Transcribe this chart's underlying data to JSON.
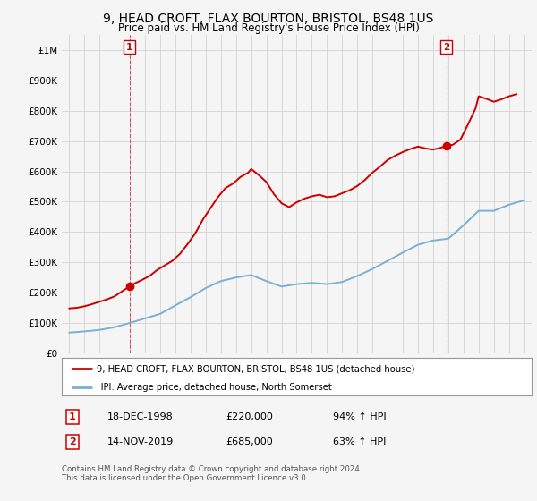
{
  "title": "9, HEAD CROFT, FLAX BOURTON, BRISTOL, BS48 1US",
  "subtitle": "Price paid vs. HM Land Registry's House Price Index (HPI)",
  "legend_line1": "9, HEAD CROFT, FLAX BOURTON, BRISTOL, BS48 1US (detached house)",
  "legend_line2": "HPI: Average price, detached house, North Somerset",
  "footnote": "Contains HM Land Registry data © Crown copyright and database right 2024.\nThis data is licensed under the Open Government Licence v3.0.",
  "sale1_date": "18-DEC-1998",
  "sale1_price": "£220,000",
  "sale1_hpi": "94% ↑ HPI",
  "sale2_date": "14-NOV-2019",
  "sale2_price": "£685,000",
  "sale2_hpi": "63% ↑ HPI",
  "sale1_year": 1998.96,
  "sale1_value": 220000,
  "sale2_year": 2019.87,
  "sale2_value": 685000,
  "red_color": "#cc0000",
  "blue_color": "#7bafd4",
  "background_color": "#f5f5f5",
  "grid_color": "#cccccc",
  "yticks": [
    0,
    100000,
    200000,
    300000,
    400000,
    500000,
    600000,
    700000,
    800000,
    900000,
    1000000
  ],
  "ylabels": [
    "£0",
    "£100K",
    "£200K",
    "£300K",
    "£400K",
    "£500K",
    "£600K",
    "£700K",
    "£800K",
    "£900K",
    "£1M"
  ],
  "ylim": [
    0,
    1050000
  ],
  "xlim_start": 1994.5,
  "xlim_end": 2025.5,
  "hpi_years": [
    1995,
    1996,
    1997,
    1998,
    1999,
    2000,
    2001,
    2002,
    2003,
    2004,
    2005,
    2006,
    2007,
    2008,
    2009,
    2010,
    2011,
    2012,
    2013,
    2014,
    2015,
    2016,
    2017,
    2018,
    2019,
    2020,
    2021,
    2022,
    2023,
    2024,
    2025
  ],
  "hpi_values": [
    68000,
    72000,
    77000,
    86000,
    100000,
    115000,
    130000,
    158000,
    185000,
    215000,
    238000,
    250000,
    258000,
    238000,
    220000,
    228000,
    232000,
    228000,
    235000,
    255000,
    278000,
    305000,
    332000,
    358000,
    372000,
    378000,
    422000,
    470000,
    470000,
    490000,
    505000
  ],
  "red_years": [
    1995.0,
    1995.5,
    1996.0,
    1996.5,
    1997.0,
    1997.5,
    1998.0,
    1998.5,
    1998.96,
    1999.3,
    1999.8,
    2000.3,
    2000.8,
    2001.3,
    2001.8,
    2002.3,
    2002.8,
    2003.3,
    2003.8,
    2004.3,
    2004.8,
    2005.3,
    2005.8,
    2006.3,
    2006.8,
    2007.0,
    2007.5,
    2008.0,
    2008.5,
    2009.0,
    2009.5,
    2010.0,
    2010.5,
    2011.0,
    2011.5,
    2012.0,
    2012.5,
    2013.0,
    2013.5,
    2014.0,
    2014.5,
    2015.0,
    2015.5,
    2016.0,
    2016.5,
    2017.0,
    2017.5,
    2018.0,
    2018.5,
    2019.0,
    2019.5,
    2019.87,
    2020.3,
    2020.8,
    2021.3,
    2021.8,
    2022.0,
    2022.5,
    2023.0,
    2023.5,
    2024.0,
    2024.5
  ],
  "red_values": [
    148000,
    150000,
    155000,
    162000,
    170000,
    178000,
    188000,
    205000,
    220000,
    230000,
    242000,
    255000,
    275000,
    290000,
    305000,
    328000,
    360000,
    395000,
    440000,
    478000,
    515000,
    545000,
    560000,
    582000,
    596000,
    608000,
    588000,
    565000,
    525000,
    495000,
    482000,
    498000,
    510000,
    518000,
    523000,
    515000,
    518000,
    528000,
    538000,
    552000,
    572000,
    596000,
    616000,
    638000,
    652000,
    664000,
    674000,
    682000,
    676000,
    672000,
    678000,
    685000,
    688000,
    705000,
    755000,
    808000,
    848000,
    840000,
    830000,
    838000,
    848000,
    855000
  ]
}
